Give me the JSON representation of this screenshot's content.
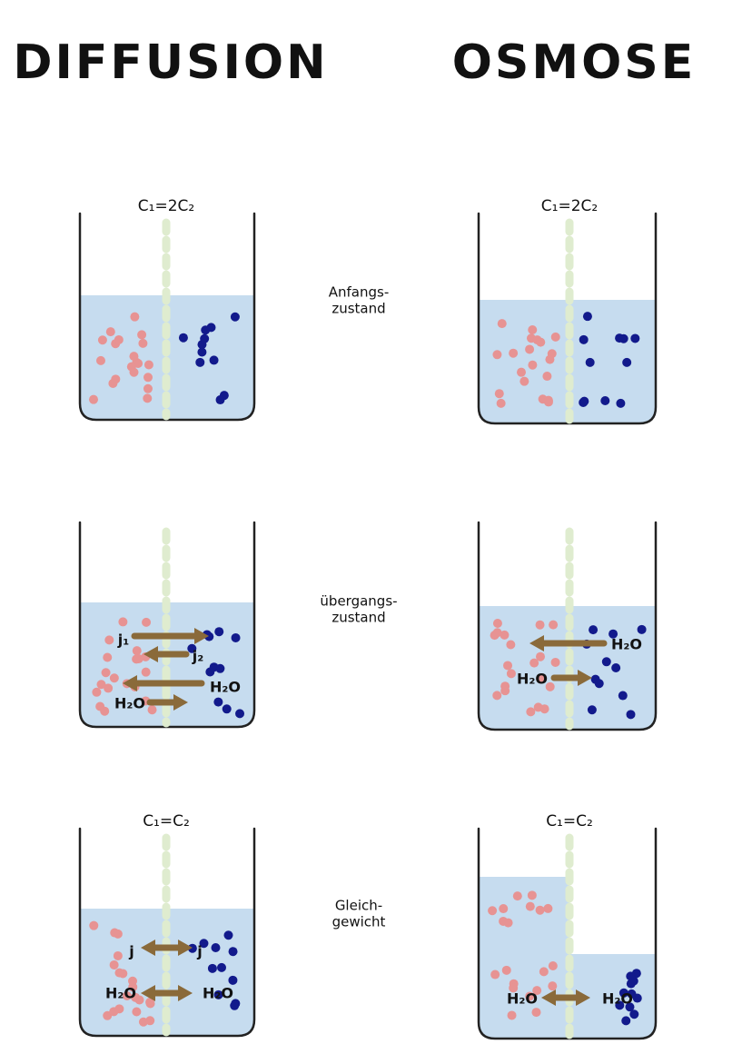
{
  "headers": [
    "DIFFUSION",
    "OSMOSE"
  ],
  "stages": [
    {
      "name_lines": [
        "Anfangs-",
        "zustand"
      ],
      "diffusion": {
        "concentration": "C₁=2C₂",
        "arrows": []
      },
      "osmose": {
        "concentration": "C₁=2C₂",
        "arrows": []
      }
    },
    {
      "name_lines": [
        "übergangs-",
        "zustand"
      ],
      "diffusion": {
        "arrows": [
          {
            "label": "j₁"
          },
          {
            "label": "j₂"
          },
          {
            "label": "H₂O"
          },
          {
            "label": "H₂O"
          }
        ]
      },
      "osmose": {
        "arrows": [
          {
            "label": "H₂O"
          },
          {
            "label": "H₂O"
          }
        ]
      }
    },
    {
      "name_lines": [
        "Gleich-",
        "gewicht"
      ],
      "diffusion": {
        "concentration": "C₁=C₂",
        "arrows": [
          {
            "label": "j",
            "label2": "j"
          },
          {
            "label": "H₂O",
            "label2": "H₂O"
          }
        ]
      },
      "osmose": {
        "concentration": "C₁=C₂",
        "arrows": [
          {
            "label": "H₂O",
            "label2": "H₂O"
          }
        ]
      }
    }
  ]
}
